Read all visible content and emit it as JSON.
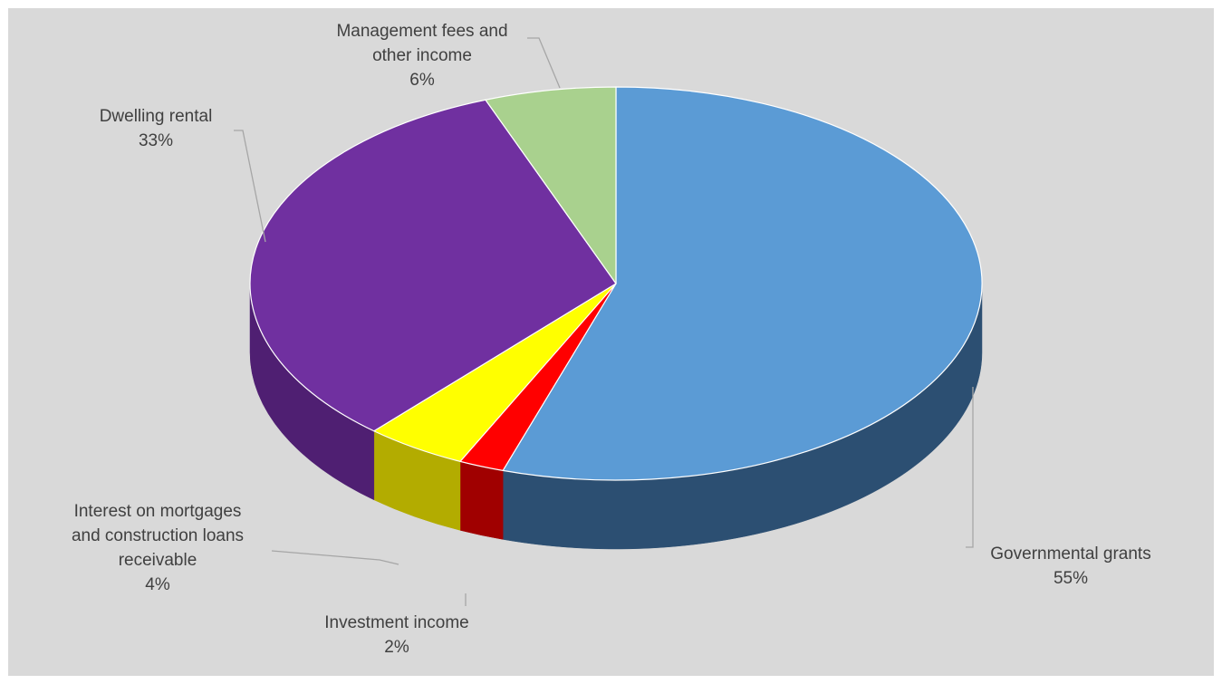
{
  "chart_data": {
    "type": "pie",
    "style": "3d-tilted",
    "start_angle_deg": -90,
    "direction": "clockwise",
    "slices": [
      {
        "key": "gov",
        "label_lines": [
          "Governmental grants"
        ],
        "percent_text": "55%",
        "value": 55.0,
        "color": "#5b9bd5",
        "side_color": "#2c4f72"
      },
      {
        "key": "inv",
        "label_lines": [
          "Investment income"
        ],
        "percent_text": "2%",
        "value": 2.0,
        "color": "#ff0000",
        "side_color": "#a00000"
      },
      {
        "key": "int",
        "label_lines": [
          "Interest on mortgages",
          "and construction loans",
          "receivable"
        ],
        "percent_text": "4%",
        "value": 4.5,
        "color": "#ffff00",
        "side_color": "#b3ac00"
      },
      {
        "key": "dwel",
        "label_lines": [
          "Dwelling rental"
        ],
        "percent_text": "33%",
        "value": 32.7,
        "color": "#7030a0",
        "side_color": "#4f1f72"
      },
      {
        "key": "mgmt",
        "label_lines": [
          "Management fees and",
          "other income"
        ],
        "percent_text": "6%",
        "value": 5.8,
        "color": "#a9d18e",
        "side_color": "#7c9c67"
      }
    ],
    "colors": {
      "background": "#d9d9d9",
      "label_text": "#404040",
      "leader_line": "#a6a6a6"
    },
    "legend": "none"
  }
}
